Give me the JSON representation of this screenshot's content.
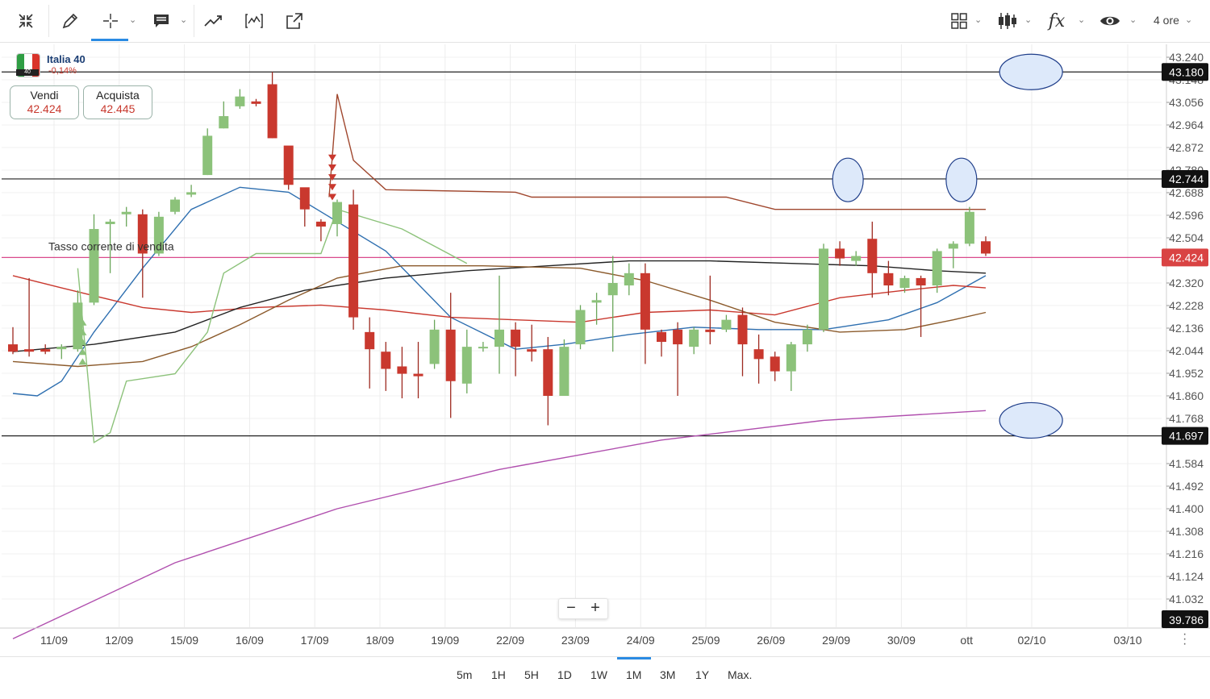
{
  "toolbar": {
    "icons": [
      "collapse-icon",
      "pencil-icon",
      "crosshair-icon",
      "comment-icon",
      "trend-icon",
      "indicator-icon",
      "export-icon",
      "layout-grid-icon",
      "candlestick-icon",
      "function-icon",
      "eye-icon"
    ],
    "timeframe_label": "4 ore"
  },
  "instrument": {
    "name": "Italia 40",
    "change": "-0,14%",
    "flag_badge": "40",
    "flag_colors": [
      "#2f9e44",
      "#ffffff",
      "#d9342b"
    ]
  },
  "trade": {
    "sell_label": "Vendi",
    "sell_value": "42.424",
    "buy_label": "Acquista",
    "buy_value": "42.445"
  },
  "bottom": {
    "timeframes": [
      "5m",
      "1H",
      "5H",
      "1D",
      "1W",
      "1M",
      "3M",
      "1Y",
      "Max."
    ],
    "active": "1M"
  },
  "zoom": {
    "minus": "−",
    "plus": "+"
  },
  "chart_data": {
    "type": "candlestick",
    "y_range": [
      39.786,
      43.3
    ],
    "y_ticks": [
      43.24,
      43.148,
      43.056,
      42.964,
      42.872,
      42.78,
      42.688,
      42.596,
      42.504,
      42.32,
      42.228,
      42.136,
      42.044,
      41.952,
      41.86,
      41.768,
      41.584,
      41.492,
      41.4,
      41.308,
      41.216,
      41.124,
      41.032
    ],
    "y_tick_labels": [
      "43.240",
      "43.148",
      "43.056",
      "42.964",
      "42.872",
      "42.780",
      "42.688",
      "42.596",
      "42.504",
      "42.320",
      "42.228",
      "42.136",
      "42.044",
      "41.952",
      "41.860",
      "41.768",
      "41.584",
      "41.492",
      "41.400",
      "41.308",
      "41.216",
      "41.124",
      "41.032"
    ],
    "x_labels": [
      "11/09",
      "12/09",
      "15/09",
      "16/09",
      "17/09",
      "18/09",
      "19/09",
      "22/09",
      "23/09",
      "24/09",
      "25/09",
      "26/09",
      "29/09",
      "30/09",
      "ott",
      "02/10",
      "03/10"
    ],
    "candles": [
      [
        42.07,
        42.04,
        42.14,
        42.03
      ],
      [
        42.05,
        42.04,
        42.34,
        42.02
      ],
      [
        42.05,
        42.04,
        42.07,
        42.03
      ],
      [
        42.05,
        42.06,
        42.07,
        42.01
      ],
      [
        42.05,
        42.24,
        42.29,
        42.04
      ],
      [
        42.24,
        42.54,
        42.6,
        42.23
      ],
      [
        42.56,
        42.57,
        42.58,
        42.36
      ],
      [
        42.6,
        42.61,
        42.63,
        42.55
      ],
      [
        42.6,
        42.44,
        42.62,
        42.26
      ],
      [
        42.44,
        42.59,
        42.61,
        42.43
      ],
      [
        42.61,
        42.66,
        42.67,
        42.6
      ],
      [
        42.68,
        42.69,
        42.72,
        42.67
      ],
      [
        42.76,
        42.92,
        42.95,
        42.76
      ],
      [
        42.95,
        43.0,
        43.06,
        42.95
      ],
      [
        43.04,
        43.08,
        43.11,
        43.03
      ],
      [
        43.06,
        43.05,
        43.07,
        43.04
      ],
      [
        43.13,
        42.91,
        43.18,
        42.91
      ],
      [
        42.88,
        42.72,
        42.84,
        42.7
      ],
      [
        42.71,
        42.62,
        42.68,
        42.55
      ],
      [
        42.57,
        42.55,
        42.58,
        42.49
      ],
      [
        42.56,
        42.65,
        42.66,
        42.51
      ],
      [
        42.64,
        42.18,
        42.7,
        42.13
      ],
      [
        42.12,
        42.05,
        42.18,
        41.89
      ],
      [
        42.04,
        41.97,
        42.08,
        41.88
      ],
      [
        41.98,
        41.95,
        42.06,
        41.85
      ],
      [
        41.95,
        41.94,
        42.08,
        41.85
      ],
      [
        41.99,
        42.13,
        42.17,
        41.97
      ],
      [
        42.13,
        41.92,
        42.28,
        41.77
      ],
      [
        41.91,
        42.06,
        42.13,
        41.87
      ],
      [
        42.06,
        42.06,
        42.08,
        42.04
      ],
      [
        42.06,
        42.13,
        42.35,
        41.95
      ],
      [
        42.13,
        42.06,
        42.16,
        41.94
      ],
      [
        42.05,
        42.04,
        42.15,
        42.0
      ],
      [
        42.05,
        41.86,
        42.1,
        41.74
      ],
      [
        41.86,
        42.06,
        42.09,
        41.86
      ],
      [
        42.07,
        42.21,
        42.23,
        42.05
      ],
      [
        42.24,
        42.25,
        42.28,
        42.15
      ],
      [
        42.27,
        42.32,
        42.43,
        42.04
      ],
      [
        42.31,
        42.36,
        42.4,
        42.27
      ],
      [
        42.36,
        42.13,
        42.4,
        41.99
      ],
      [
        42.12,
        42.08,
        42.13,
        42.02
      ],
      [
        42.13,
        42.07,
        42.16,
        41.86
      ],
      [
        42.06,
        42.13,
        42.14,
        42.03
      ],
      [
        42.13,
        42.12,
        42.35,
        42.07
      ],
      [
        42.13,
        42.17,
        42.19,
        42.12
      ],
      [
        42.19,
        42.07,
        42.22,
        41.94
      ],
      [
        42.05,
        42.01,
        42.11,
        41.91
      ],
      [
        42.02,
        41.96,
        42.04,
        41.92
      ],
      [
        41.96,
        42.07,
        42.08,
        41.88
      ],
      [
        42.07,
        42.13,
        42.15,
        42.04
      ],
      [
        42.13,
        42.46,
        42.48,
        42.12
      ],
      [
        42.46,
        42.42,
        42.49,
        42.39
      ],
      [
        42.41,
        42.43,
        42.45,
        42.39
      ],
      [
        42.5,
        42.36,
        42.57,
        42.26
      ],
      [
        42.36,
        42.31,
        42.41,
        42.27
      ],
      [
        42.3,
        42.34,
        42.35,
        42.28
      ],
      [
        42.34,
        42.31,
        42.35,
        42.1
      ],
      [
        42.31,
        42.45,
        42.46,
        42.28
      ],
      [
        42.46,
        42.48,
        42.49,
        42.38
      ],
      [
        42.48,
        42.61,
        42.63,
        42.47
      ],
      [
        42.49,
        42.44,
        42.51,
        42.43
      ]
    ],
    "series": [
      {
        "color": "#2e6fb0",
        "values": [
          [
            0,
            41.87
          ],
          [
            1.5,
            41.86
          ],
          [
            3,
            41.92
          ],
          [
            5,
            42.12
          ],
          [
            8,
            42.38
          ],
          [
            11,
            42.62
          ],
          [
            14,
            42.71
          ],
          [
            17,
            42.69
          ],
          [
            19,
            42.61
          ],
          [
            23,
            42.45
          ],
          [
            27,
            42.18
          ],
          [
            31,
            42.05
          ],
          [
            34,
            42.07
          ],
          [
            38,
            42.11
          ],
          [
            42,
            42.14
          ],
          [
            46,
            42.13
          ],
          [
            50,
            42.13
          ],
          [
            54,
            42.17
          ],
          [
            57,
            42.24
          ],
          [
            60,
            42.35
          ]
        ]
      },
      {
        "color": "#c9382e",
        "values": [
          [
            0,
            42.35
          ],
          [
            3,
            42.3
          ],
          [
            8,
            42.22
          ],
          [
            11,
            42.2
          ],
          [
            15,
            42.22
          ],
          [
            19,
            42.23
          ],
          [
            23,
            42.21
          ],
          [
            27,
            42.18
          ],
          [
            31,
            42.17
          ],
          [
            35,
            42.16
          ],
          [
            39,
            42.2
          ],
          [
            43,
            42.21
          ],
          [
            47,
            42.19
          ],
          [
            51,
            42.26
          ],
          [
            55,
            42.29
          ],
          [
            58,
            42.31
          ],
          [
            60,
            42.3
          ]
        ]
      },
      {
        "color": "#222222",
        "values": [
          [
            0,
            42.04
          ],
          [
            5,
            42.07
          ],
          [
            10,
            42.12
          ],
          [
            14,
            42.22
          ],
          [
            18,
            42.29
          ],
          [
            23,
            42.34
          ],
          [
            28,
            42.37
          ],
          [
            33,
            42.39
          ],
          [
            38,
            42.41
          ],
          [
            43,
            42.41
          ],
          [
            48,
            42.4
          ],
          [
            53,
            42.39
          ],
          [
            57,
            42.37
          ],
          [
            60,
            42.36
          ]
        ]
      },
      {
        "color": "#8b5a2b",
        "values": [
          [
            0,
            42.0
          ],
          [
            4,
            41.98
          ],
          [
            8,
            42.0
          ],
          [
            11,
            42.06
          ],
          [
            14,
            42.15
          ],
          [
            17,
            42.25
          ],
          [
            20,
            42.34
          ],
          [
            24,
            42.39
          ],
          [
            29,
            42.39
          ],
          [
            35,
            42.38
          ],
          [
            39,
            42.33
          ],
          [
            43,
            42.25
          ],
          [
            47,
            42.16
          ],
          [
            51,
            42.12
          ],
          [
            55,
            42.13
          ],
          [
            58,
            42.17
          ],
          [
            60,
            42.2
          ]
        ]
      },
      {
        "color": "#a0472e",
        "values": [
          [
            19.5,
            42.67
          ],
          [
            20,
            43.09
          ],
          [
            21,
            42.82
          ],
          [
            23,
            42.7
          ],
          [
            31,
            42.69
          ],
          [
            32,
            42.67
          ],
          [
            44,
            42.67
          ],
          [
            47,
            42.62
          ],
          [
            60,
            42.62
          ]
        ]
      },
      {
        "color": "#8cc27a",
        "values": [
          [
            4,
            42.38
          ],
          [
            5,
            41.67
          ],
          [
            6,
            41.71
          ],
          [
            7,
            41.92
          ],
          [
            10,
            41.95
          ],
          [
            12,
            42.12
          ],
          [
            13,
            42.36
          ],
          [
            15,
            42.44
          ],
          [
            19,
            42.44
          ],
          [
            20,
            42.62
          ],
          [
            24,
            42.54
          ],
          [
            28,
            42.4
          ]
        ]
      },
      {
        "color": "#b04fae",
        "values": [
          [
            0,
            40.87
          ],
          [
            10,
            41.18
          ],
          [
            20,
            41.4
          ],
          [
            30,
            41.56
          ],
          [
            40,
            41.68
          ],
          [
            50,
            41.76
          ],
          [
            60,
            41.8
          ]
        ]
      }
    ],
    "horizontal_lines": [
      {
        "value": 43.18,
        "label": "43.180",
        "color": "#222222"
      },
      {
        "value": 42.744,
        "label": "42.744",
        "color": "#222222"
      },
      {
        "value": 41.697,
        "label": "41.697",
        "color": "#222222"
      },
      {
        "value": 42.424,
        "label": "42.424",
        "color": "#d94a8c"
      }
    ],
    "bottom_price": "39.786",
    "sell_line_label": "Tasso corrente di vendita",
    "ellipses": [
      [
        61.5,
        43.18
      ],
      [
        51.5,
        42.74
      ],
      [
        58.5,
        42.74
      ],
      [
        61.5,
        41.76
      ]
    ],
    "up_color": "#8cc27a",
    "down_color": "#c9382e"
  }
}
